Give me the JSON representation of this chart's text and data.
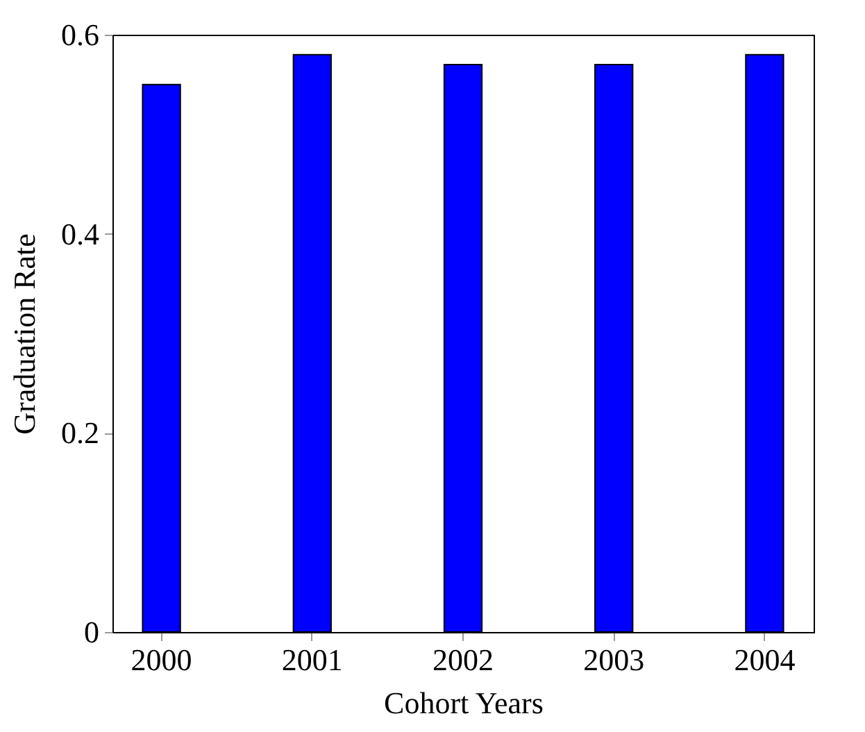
{
  "chart_data": {
    "type": "bar",
    "xlabel": "Cohort Years",
    "ylabel": "Graduation Rate",
    "categories": [
      "2000",
      "2001",
      "2002",
      "2003",
      "2004"
    ],
    "values": [
      0.55,
      0.58,
      0.57,
      0.57,
      0.58
    ],
    "color": "#0000ff",
    "ylim": [
      0,
      0.6
    ],
    "yticks": [
      0,
      0.2,
      0.4,
      0.6
    ],
    "grid": false
  }
}
